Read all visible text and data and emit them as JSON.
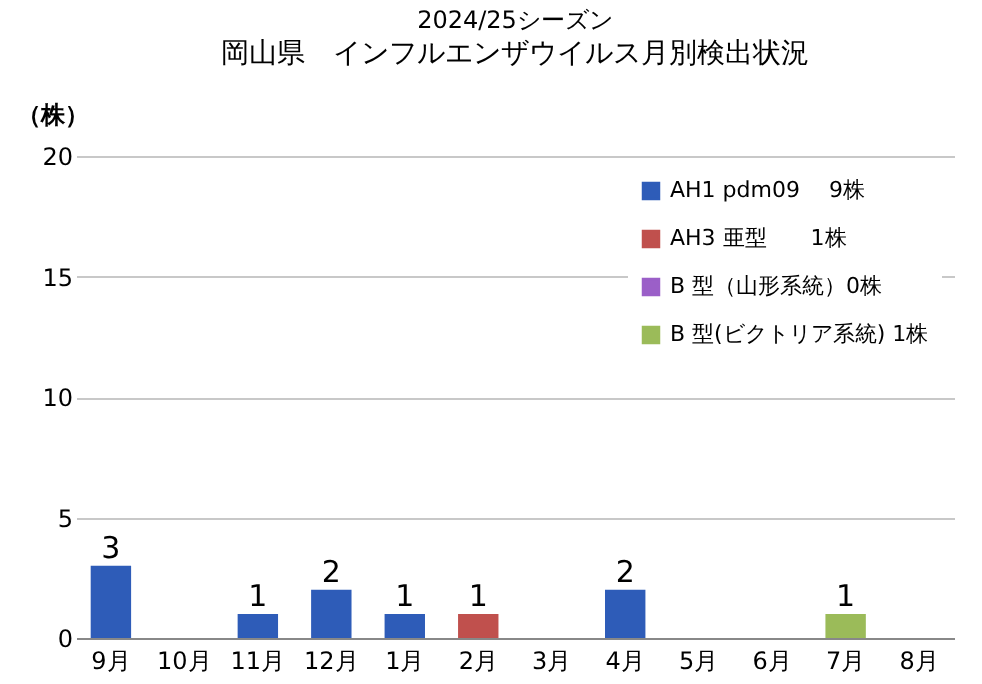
{
  "chart_data": {
    "type": "bar",
    "title": "2024/25シーズン",
    "subtitle": "岡山県　インフルエンザウイルス月別検出状況",
    "ylabel": "（株）",
    "categories": [
      "9月",
      "10月",
      "11月",
      "12月",
      "1月",
      "2月",
      "3月",
      "4月",
      "5月",
      "6月",
      "7月",
      "8月"
    ],
    "series": [
      {
        "name": "AH1 pdm09　 9株",
        "color": "#2e5cb8",
        "values": [
          3,
          null,
          1,
          2,
          1,
          null,
          null,
          2,
          null,
          null,
          null,
          null
        ]
      },
      {
        "name": "AH3 亜型　　1株",
        "color": "#c0504d",
        "values": [
          null,
          null,
          null,
          null,
          null,
          1,
          null,
          null,
          null,
          null,
          null,
          null
        ]
      },
      {
        "name": "B 型（山形系統）0株",
        "color": "#9b5fc8",
        "values": [
          null,
          null,
          null,
          null,
          null,
          null,
          null,
          null,
          null,
          null,
          null,
          null
        ]
      },
      {
        "name": "B 型(ビクトリア系統) 1株",
        "color": "#9bbb59",
        "values": [
          null,
          null,
          null,
          null,
          null,
          null,
          null,
          null,
          null,
          null,
          1,
          null
        ]
      }
    ],
    "data_labels": true,
    "ylim": [
      0,
      20
    ],
    "yticks": [
      0,
      5,
      10,
      15,
      20
    ],
    "grid": "y",
    "legend": "top right"
  }
}
